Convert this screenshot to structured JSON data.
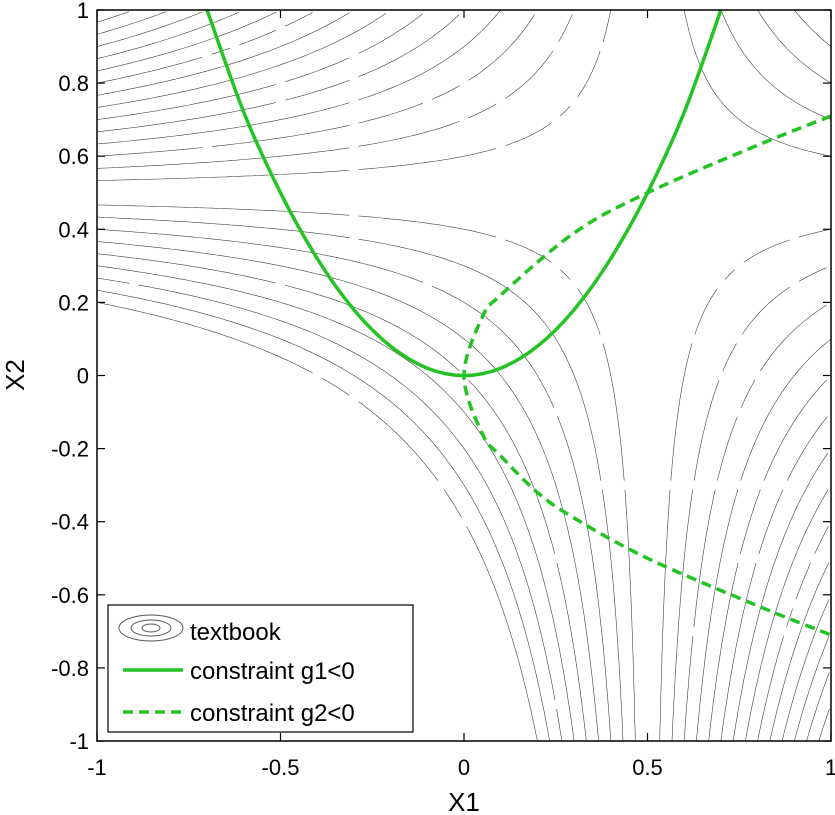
{
  "chart_data": {
    "type": "contour",
    "xlabel": "X1",
    "ylabel": "X2",
    "xlim": [
      -1,
      1
    ],
    "ylim": [
      -1,
      1
    ],
    "xticks": [
      -1,
      -0.5,
      0,
      0.5,
      1
    ],
    "xtick_labels": [
      "-1",
      "-0.5",
      "0",
      "0.5",
      "1"
    ],
    "yticks": [
      -1,
      -0.8,
      -0.6,
      -0.4,
      -0.2,
      0,
      0.2,
      0.4,
      0.6,
      0.8,
      1
    ],
    "ytick_labels": [
      "-1",
      "-0.8",
      "-0.6",
      "-0.4",
      "-0.2",
      "0",
      "0.2",
      "0.4",
      "0.6",
      "0.8",
      "1"
    ],
    "grid": false,
    "legend_position": "bottom-left",
    "contour": {
      "name": "textbook",
      "color": "#000000",
      "levels": [
        0.2,
        0.15,
        0.1,
        0.05,
        0.0,
        -0.05,
        -0.1,
        -0.15,
        -0.2,
        -0.25,
        -0.3,
        -0.35,
        -0.4,
        -0.45,
        -0.5,
        -0.55,
        -0.6,
        -0.65,
        -0.7,
        -0.75,
        -0.8,
        -0.85,
        -0.9,
        -0.95,
        -1.0,
        -1.05,
        -1.1,
        -1.15,
        -1.2,
        -1.25,
        -1.3,
        -1.35,
        -1.4,
        -1.45,
        -1.5,
        -1.55,
        -1.6,
        -1.65,
        -1.7,
        -1.75,
        -1.8,
        -1.85,
        -1.9
      ]
    },
    "series": [
      {
        "name": "constraint g1<0",
        "style": "solid",
        "color": "#22c322",
        "x": [
          -0.7,
          -0.6,
          -0.5,
          -0.4,
          -0.3,
          -0.2,
          -0.1,
          0,
          0.1,
          0.2,
          0.3,
          0.4,
          0.5,
          0.6,
          0.7
        ],
        "y": [
          1.0,
          0.72,
          0.5,
          0.32,
          0.18,
          0.08,
          0.02,
          0,
          0.02,
          0.08,
          0.18,
          0.32,
          0.5,
          0.72,
          1.0
        ]
      },
      {
        "name": "constraint g2<0",
        "style": "dashed",
        "color": "#22c322",
        "x": [
          1.0,
          0.8,
          0.5,
          0.3,
          0.1,
          0.05,
          0,
          0.05,
          0.1,
          0.2,
          0.3,
          0.5,
          0.8,
          1.0
        ],
        "y": [
          0.71,
          0.63,
          0.5,
          0.39,
          0.22,
          0.16,
          0,
          -0.16,
          -0.22,
          -0.32,
          -0.39,
          -0.5,
          -0.63,
          -0.71
        ]
      }
    ]
  }
}
